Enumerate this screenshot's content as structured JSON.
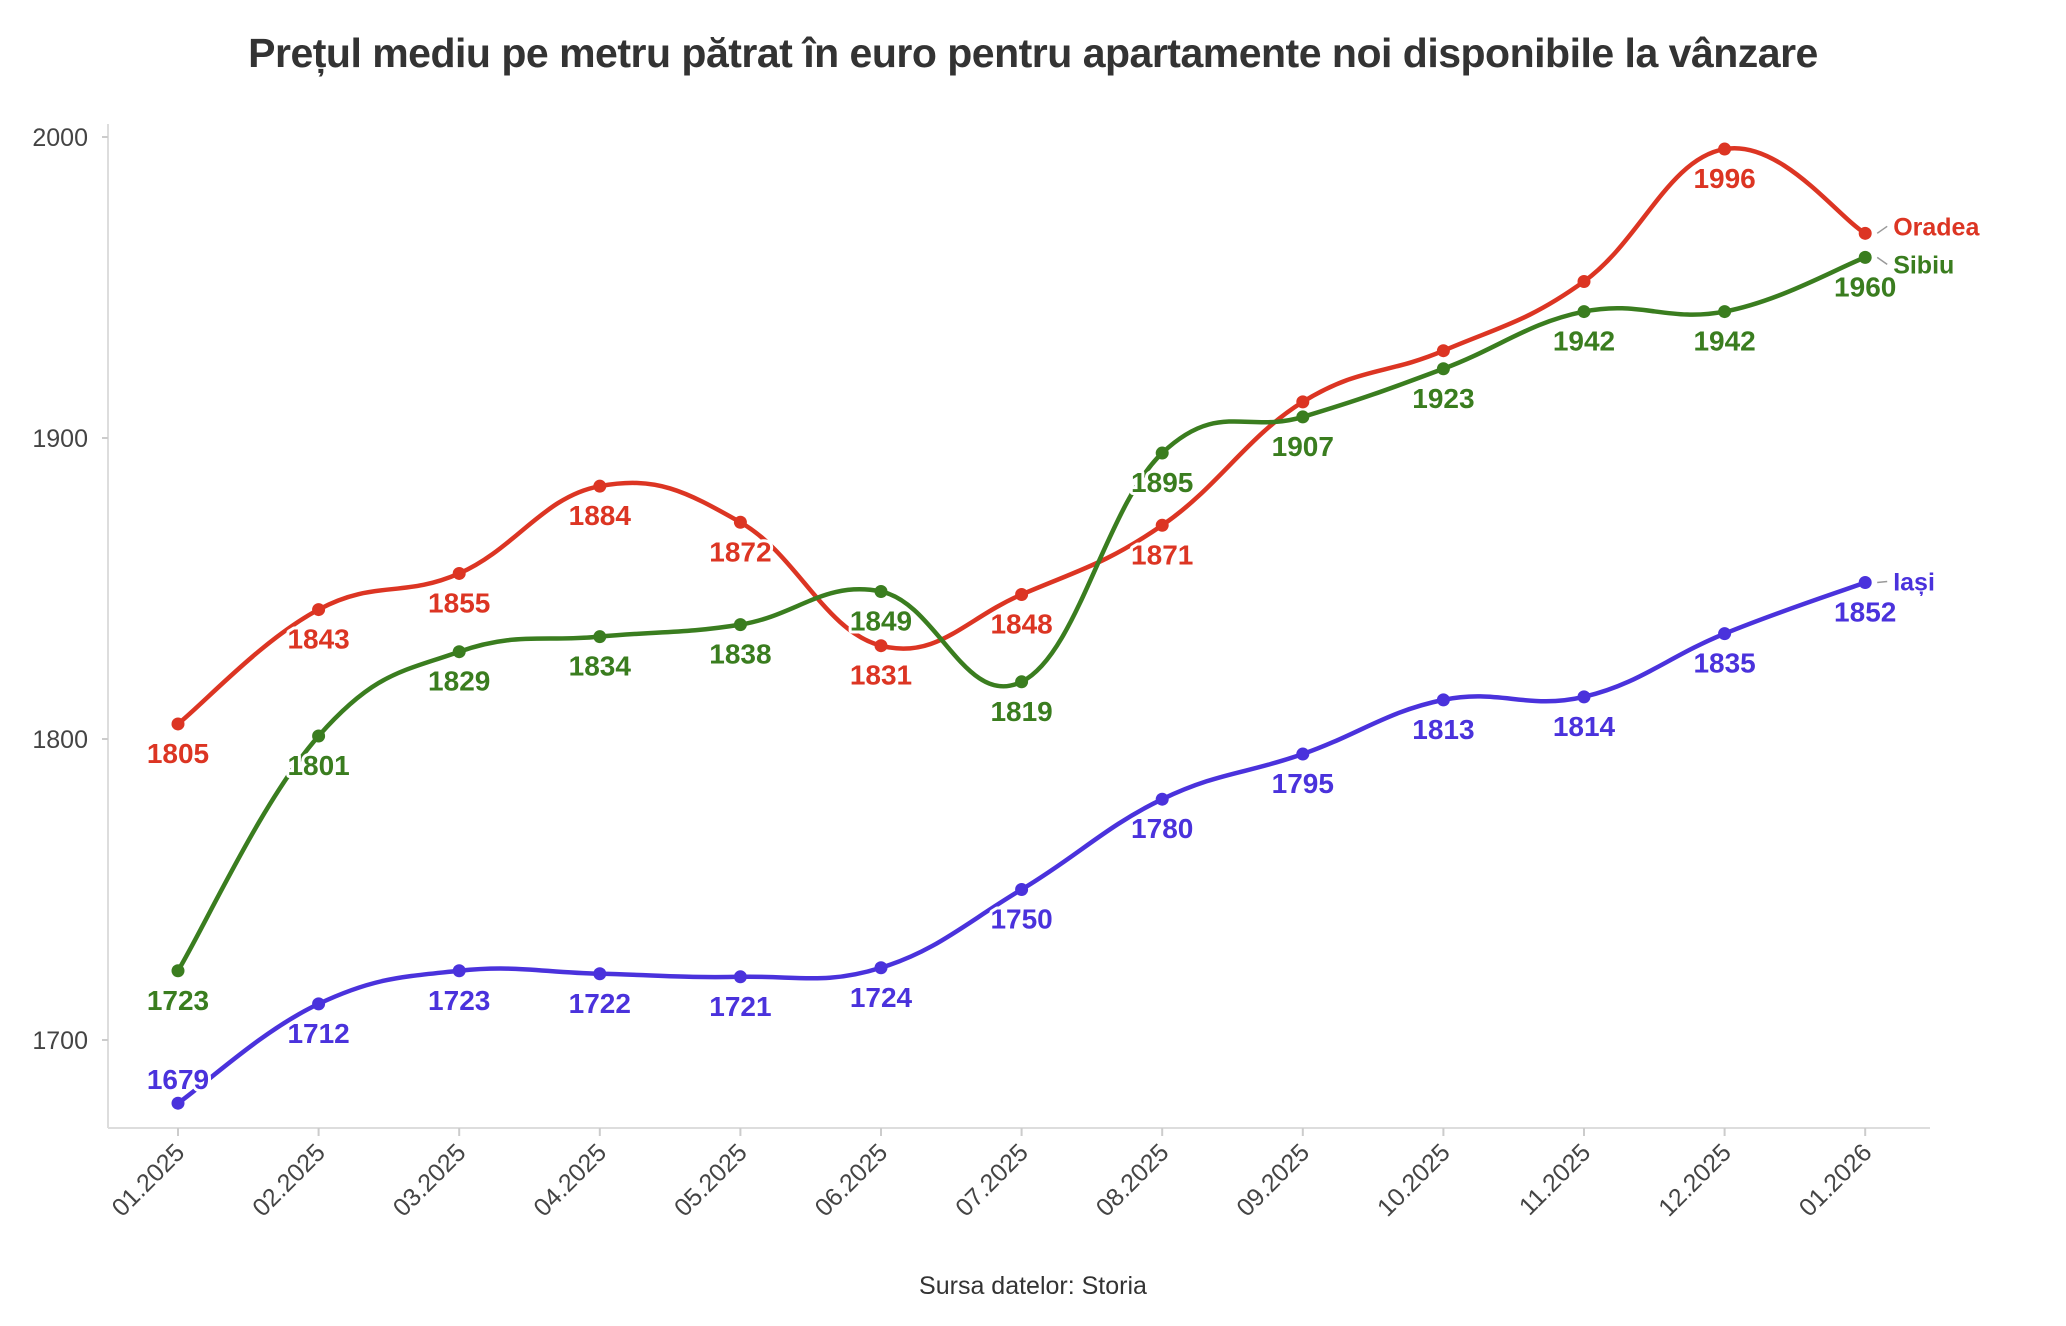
{
  "chart_data": {
    "type": "line",
    "title": "Prețul mediu pe metru pătrat în euro pentru apartamente noi disponibile la vânzare",
    "source": "Sursa datelor: Storia",
    "xlabel": "",
    "ylabel": "",
    "categories": [
      "01.2025",
      "02.2025",
      "03.2025",
      "04.2025",
      "05.2025",
      "06.2025",
      "07.2025",
      "08.2025",
      "09.2025",
      "10.2025",
      "11.2025",
      "12.2025",
      "01.2026"
    ],
    "yticks": [
      1700,
      1800,
      1900,
      2000
    ],
    "ylim": [
      1670,
      2003
    ],
    "grid": false,
    "legend": "inline labels at line ends (right)",
    "series": [
      {
        "name": "Oradea",
        "color": "#dc3523",
        "values": [
          1805,
          1843,
          1855,
          1884,
          1872,
          1831,
          1848,
          1871,
          1912,
          1929,
          1952,
          1996,
          1968
        ],
        "labels": [
          "1805",
          "1843",
          "1855",
          "1884",
          "1872",
          "1831",
          "1848",
          "1871",
          "",
          "",
          "",
          "1996",
          ""
        ],
        "label_pos": [
          "below",
          "below",
          "below",
          "below",
          "below",
          "below",
          "below",
          "below",
          "below",
          "below",
          "below",
          "below",
          "below"
        ]
      },
      {
        "name": "Sibiu",
        "color": "#3a7d1f",
        "values": [
          1723,
          1801,
          1829,
          1834,
          1838,
          1849,
          1819,
          1895,
          1907,
          1923,
          1942,
          1942,
          1960
        ],
        "labels": [
          "1723",
          "1801",
          "1829",
          "1834",
          "1838",
          "1849",
          "1819",
          "1895",
          "1907",
          "1923",
          "1942",
          "1942",
          "1960"
        ],
        "label_pos": [
          "below",
          "below",
          "below",
          "below",
          "below",
          "below",
          "below",
          "below",
          "below",
          "below",
          "below",
          "below",
          "below"
        ]
      },
      {
        "name": "Iași",
        "color": "#4a32dc",
        "values": [
          1679,
          1712,
          1723,
          1722,
          1721,
          1724,
          1750,
          1780,
          1795,
          1813,
          1814,
          1835,
          1852
        ],
        "labels": [
          "1679",
          "1712",
          "1723",
          "1722",
          "1721",
          "1724",
          "1750",
          "1780",
          "1795",
          "1813",
          "1814",
          "1835",
          "1852"
        ],
        "label_pos": [
          "above",
          "below",
          "below",
          "below",
          "below",
          "below",
          "below",
          "below",
          "below",
          "below",
          "below",
          "below",
          "below"
        ]
      }
    ]
  }
}
